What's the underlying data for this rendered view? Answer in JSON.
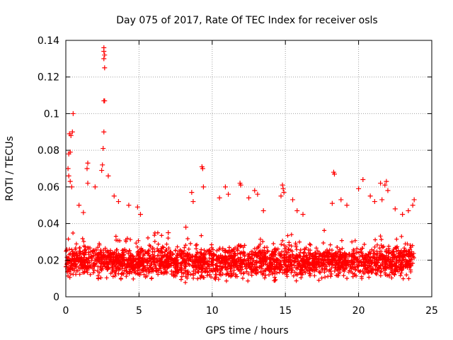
{
  "chart_data": {
    "type": "scatter",
    "title": "Day 075 of 2017, Rate Of TEC Index for receiver osls",
    "xlabel": "GPS time / hours",
    "ylabel": "ROTI / TECUs",
    "xlim": [
      0,
      25
    ],
    "ylim": [
      0,
      0.14
    ],
    "xticks": [
      0,
      5,
      10,
      15,
      20,
      25
    ],
    "xtick_labels": [
      "0",
      "5",
      "10",
      "15",
      "20",
      "25"
    ],
    "yticks": [
      0,
      0.02,
      0.04,
      0.06,
      0.08,
      0.1,
      0.12,
      0.14
    ],
    "ytick_labels": [
      "0",
      "0.02",
      "0.04",
      "0.06",
      "0.08",
      "0.1",
      "0.12",
      "0.14"
    ],
    "grid": true,
    "legend": "none",
    "marker": "+",
    "color": "#ff0000",
    "x_data_range": [
      0,
      23.8
    ],
    "series": [
      {
        "name": "ROTI",
        "note": "dense band of samples, mostly 0.007-0.03 TECU/s across 0-23.8 h; outliers listed below",
        "outliers": [
          {
            "x": 2.6,
            "y": 0.136
          },
          {
            "x": 2.6,
            "y": 0.134
          },
          {
            "x": 2.65,
            "y": 0.132
          },
          {
            "x": 2.6,
            "y": 0.13
          },
          {
            "x": 2.65,
            "y": 0.125
          },
          {
            "x": 2.6,
            "y": 0.107
          },
          {
            "x": 2.65,
            "y": 0.107
          },
          {
            "x": 2.6,
            "y": 0.09
          },
          {
            "x": 2.55,
            "y": 0.081
          },
          {
            "x": 0.5,
            "y": 0.1
          },
          {
            "x": 0.25,
            "y": 0.089
          },
          {
            "x": 0.35,
            "y": 0.088
          },
          {
            "x": 0.45,
            "y": 0.09
          },
          {
            "x": 0.2,
            "y": 0.078
          },
          {
            "x": 0.3,
            "y": 0.079
          },
          {
            "x": 0.15,
            "y": 0.07
          },
          {
            "x": 0.2,
            "y": 0.066
          },
          {
            "x": 0.3,
            "y": 0.063
          },
          {
            "x": 0.4,
            "y": 0.06
          },
          {
            "x": 1.5,
            "y": 0.073
          },
          {
            "x": 1.45,
            "y": 0.07
          },
          {
            "x": 2.5,
            "y": 0.072
          },
          {
            "x": 2.45,
            "y": 0.069
          },
          {
            "x": 2.9,
            "y": 0.066
          },
          {
            "x": 1.5,
            "y": 0.062
          },
          {
            "x": 2.0,
            "y": 0.06
          },
          {
            "x": 3.3,
            "y": 0.055
          },
          {
            "x": 3.6,
            "y": 0.052
          },
          {
            "x": 4.3,
            "y": 0.05
          },
          {
            "x": 4.9,
            "y": 0.049
          },
          {
            "x": 9.3,
            "y": 0.071
          },
          {
            "x": 9.35,
            "y": 0.07
          },
          {
            "x": 9.4,
            "y": 0.06
          },
          {
            "x": 8.6,
            "y": 0.057
          },
          {
            "x": 8.7,
            "y": 0.052
          },
          {
            "x": 10.9,
            "y": 0.06
          },
          {
            "x": 10.5,
            "y": 0.054
          },
          {
            "x": 11.1,
            "y": 0.056
          },
          {
            "x": 11.9,
            "y": 0.062
          },
          {
            "x": 11.95,
            "y": 0.061
          },
          {
            "x": 12.5,
            "y": 0.054
          },
          {
            "x": 12.9,
            "y": 0.058
          },
          {
            "x": 13.1,
            "y": 0.056
          },
          {
            "x": 13.5,
            "y": 0.047
          },
          {
            "x": 14.8,
            "y": 0.061
          },
          {
            "x": 14.85,
            "y": 0.059
          },
          {
            "x": 14.9,
            "y": 0.057
          },
          {
            "x": 14.7,
            "y": 0.055
          },
          {
            "x": 15.5,
            "y": 0.053
          },
          {
            "x": 15.8,
            "y": 0.047
          },
          {
            "x": 16.2,
            "y": 0.045
          },
          {
            "x": 18.3,
            "y": 0.068
          },
          {
            "x": 18.35,
            "y": 0.067
          },
          {
            "x": 18.2,
            "y": 0.051
          },
          {
            "x": 18.8,
            "y": 0.053
          },
          {
            "x": 19.2,
            "y": 0.05
          },
          {
            "x": 20.3,
            "y": 0.064
          },
          {
            "x": 20.0,
            "y": 0.059
          },
          {
            "x": 20.8,
            "y": 0.055
          },
          {
            "x": 21.1,
            "y": 0.052
          },
          {
            "x": 21.5,
            "y": 0.062
          },
          {
            "x": 21.9,
            "y": 0.063
          },
          {
            "x": 21.8,
            "y": 0.061
          },
          {
            "x": 22.0,
            "y": 0.058
          },
          {
            "x": 21.6,
            "y": 0.053
          },
          {
            "x": 22.5,
            "y": 0.048
          },
          {
            "x": 23.0,
            "y": 0.045
          },
          {
            "x": 23.4,
            "y": 0.047
          },
          {
            "x": 23.8,
            "y": 0.053
          },
          {
            "x": 23.7,
            "y": 0.05
          },
          {
            "x": 0.9,
            "y": 0.05
          },
          {
            "x": 1.2,
            "y": 0.046
          },
          {
            "x": 5.1,
            "y": 0.045
          },
          {
            "x": 7.0,
            "y": 0.035
          },
          {
            "x": 8.2,
            "y": 0.038
          }
        ],
        "typical_range": [
          0.007,
          0.03
        ]
      }
    ]
  }
}
